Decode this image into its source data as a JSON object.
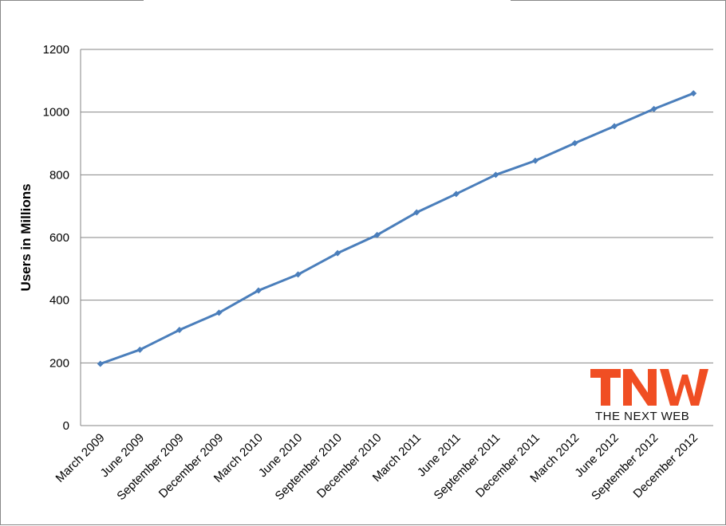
{
  "chart_data": {
    "type": "line",
    "title": "",
    "xlabel": "",
    "ylabel": "Users in Millions",
    "ylim": [
      0,
      1200
    ],
    "yticks": [
      0,
      200,
      400,
      600,
      800,
      1000,
      1200
    ],
    "grid": true,
    "categories": [
      "March 2009",
      "June 2009",
      "September 2009",
      "December 2009",
      "March 2010",
      "June 2010",
      "September 2010",
      "December 2010",
      "March 2011",
      "June 2011",
      "September 2011",
      "December 2011",
      "March 2012",
      "June 2012",
      "September 2012",
      "December 2012"
    ],
    "series": [
      {
        "values": [
          197,
          242,
          305,
          360,
          431,
          482,
          550,
          608,
          680,
          739,
          800,
          845,
          901,
          955,
          1010,
          1060
        ]
      }
    ],
    "colors": {
      "line": "#4a7ebb",
      "grid": "#868686"
    }
  },
  "logo": {
    "text": "THE NEXT WEB",
    "mark": "TNW",
    "color": "#f04e23"
  }
}
